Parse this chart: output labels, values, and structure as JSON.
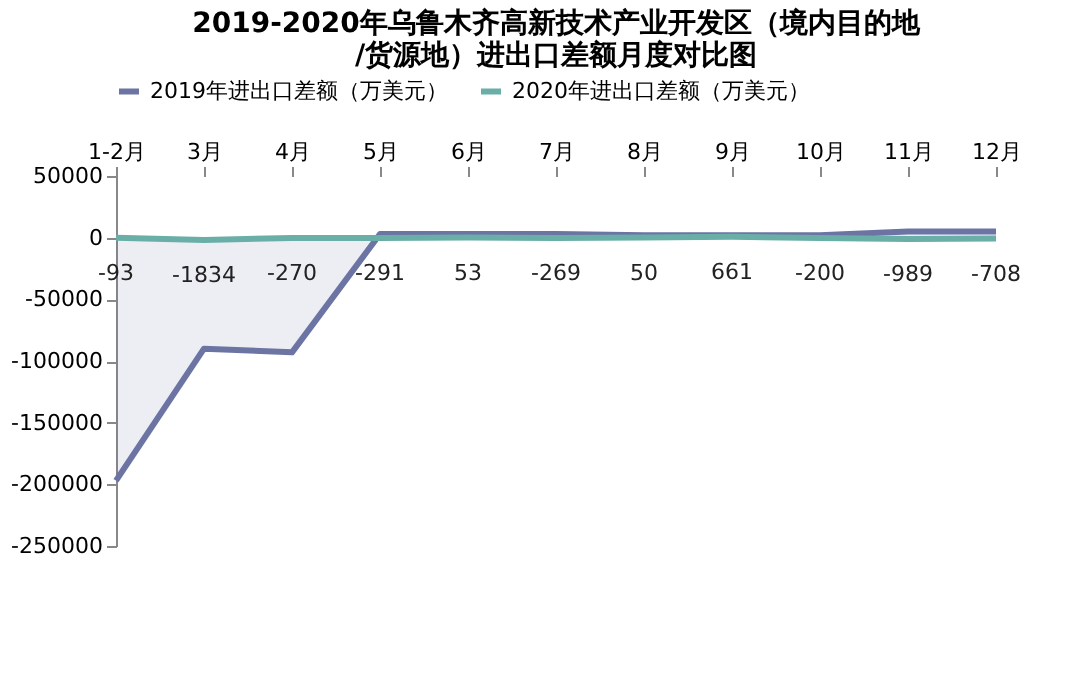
{
  "chart_data": {
    "type": "line",
    "title": "2019-2020年乌鲁木齐高新技术产业开发区（境内目的地/货源地）进出口差额月度对比图",
    "categories": [
      "1-2月",
      "3月",
      "4月",
      "5月",
      "6月",
      "7月",
      "8月",
      "9月",
      "10月",
      "11月",
      "12月"
    ],
    "series": [
      {
        "name": "2019年进出口差额（万美元）",
        "color": "#6b74a3",
        "type": "area",
        "values": [
          -197000,
          -90000,
          -93000,
          3000,
          3000,
          3000,
          2000,
          2000,
          2000,
          5000,
          5000
        ]
      },
      {
        "name": "2020年进出口差额（万美元）",
        "color": "#6aaea8",
        "values": [
          -93,
          -1834,
          -270,
          -291,
          53,
          -269,
          50,
          661,
          -200,
          -989,
          -708
        ],
        "value_labels": [
          "-93",
          "-1834",
          "-270",
          "-291",
          "53",
          "-269",
          "50",
          "661",
          "-200",
          "-989",
          "-708"
        ]
      }
    ],
    "ylim": [
      -250000,
      50000
    ],
    "yticks": [
      50000,
      0,
      -50000,
      -100000,
      -150000,
      -200000,
      -250000
    ],
    "grid": false,
    "legend": "top",
    "marker": "none",
    "line_style": "solid"
  }
}
